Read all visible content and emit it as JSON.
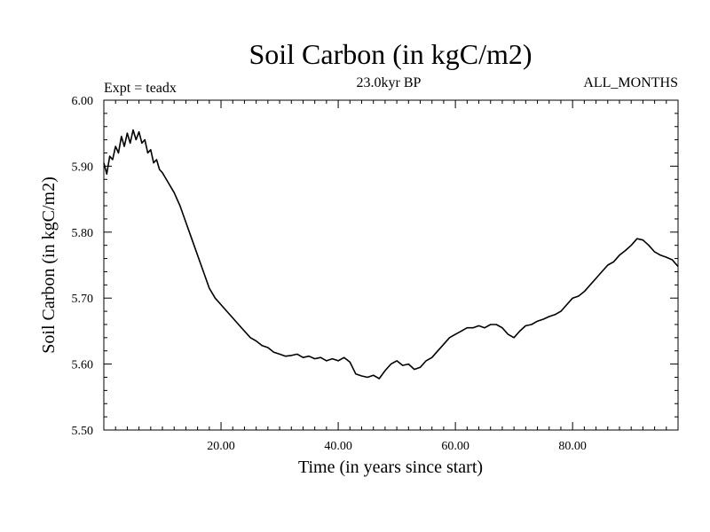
{
  "chart_data": {
    "type": "line",
    "title": "Soil Carbon (in kgC/m2)",
    "subtitle_left": "Expt = teadx",
    "subtitle_center": "23.0kyr BP",
    "subtitle_right": "ALL_MONTHS",
    "xlabel": "Time (in years since start)",
    "ylabel": "Soil Carbon (in kgC/m2)",
    "xlim": [
      0,
      98
    ],
    "ylim": [
      5.5,
      6.0
    ],
    "grid": false,
    "legend": "none",
    "line_color": "#000000",
    "x_ticks": [
      20,
      40,
      60,
      80
    ],
    "x_tick_labels": [
      "20.00",
      "40.00",
      "60.00",
      "80.00"
    ],
    "y_ticks": [
      5.5,
      5.6,
      5.7,
      5.8,
      5.9,
      6.0
    ],
    "y_tick_labels": [
      "5.50",
      "5.60",
      "5.70",
      "5.80",
      "5.90",
      "6.00"
    ],
    "series": [
      {
        "x": [
          0,
          0.5,
          1,
          1.5,
          2,
          2.5,
          3,
          3.5,
          4,
          4.5,
          5,
          5.5,
          6,
          6.5,
          7,
          7.5,
          8,
          8.5,
          9,
          9.5,
          10,
          11,
          12,
          13,
          14,
          15,
          16,
          17,
          18,
          19,
          20,
          21,
          22,
          23,
          24,
          25,
          26,
          27,
          28,
          29,
          30,
          31,
          32,
          33,
          34,
          35,
          36,
          37,
          38,
          39,
          40,
          41,
          42,
          43,
          44,
          45,
          46,
          47,
          48,
          49,
          50,
          51,
          52,
          53,
          54,
          55,
          56,
          57,
          58,
          59,
          60,
          61,
          62,
          63,
          64,
          65,
          66,
          67,
          68,
          69,
          70,
          71,
          72,
          73,
          74,
          75,
          76,
          77,
          78,
          79,
          80,
          81,
          82,
          83,
          84,
          85,
          86,
          87,
          88,
          89,
          90,
          91,
          92,
          93,
          94,
          95,
          96,
          97,
          98
        ],
        "values": [
          5.905,
          5.888,
          5.915,
          5.91,
          5.93,
          5.92,
          5.945,
          5.93,
          5.95,
          5.935,
          5.955,
          5.94,
          5.952,
          5.935,
          5.94,
          5.92,
          5.925,
          5.905,
          5.91,
          5.895,
          5.89,
          5.875,
          5.86,
          5.84,
          5.815,
          5.79,
          5.765,
          5.74,
          5.715,
          5.7,
          5.69,
          5.68,
          5.67,
          5.66,
          5.65,
          5.64,
          5.635,
          5.628,
          5.625,
          5.618,
          5.615,
          5.612,
          5.613,
          5.615,
          5.61,
          5.612,
          5.608,
          5.61,
          5.605,
          5.608,
          5.605,
          5.61,
          5.603,
          5.585,
          5.582,
          5.58,
          5.583,
          5.578,
          5.59,
          5.6,
          5.605,
          5.598,
          5.6,
          5.592,
          5.595,
          5.605,
          5.61,
          5.62,
          5.63,
          5.64,
          5.645,
          5.65,
          5.655,
          5.655,
          5.658,
          5.655,
          5.66,
          5.66,
          5.655,
          5.645,
          5.64,
          5.65,
          5.658,
          5.66,
          5.665,
          5.668,
          5.672,
          5.675,
          5.68,
          5.69,
          5.7,
          5.703,
          5.71,
          5.72,
          5.73,
          5.74,
          5.75,
          5.755,
          5.765,
          5.772,
          5.78,
          5.79,
          5.788,
          5.78,
          5.77,
          5.765,
          5.762,
          5.758,
          5.748
        ]
      }
    ]
  }
}
